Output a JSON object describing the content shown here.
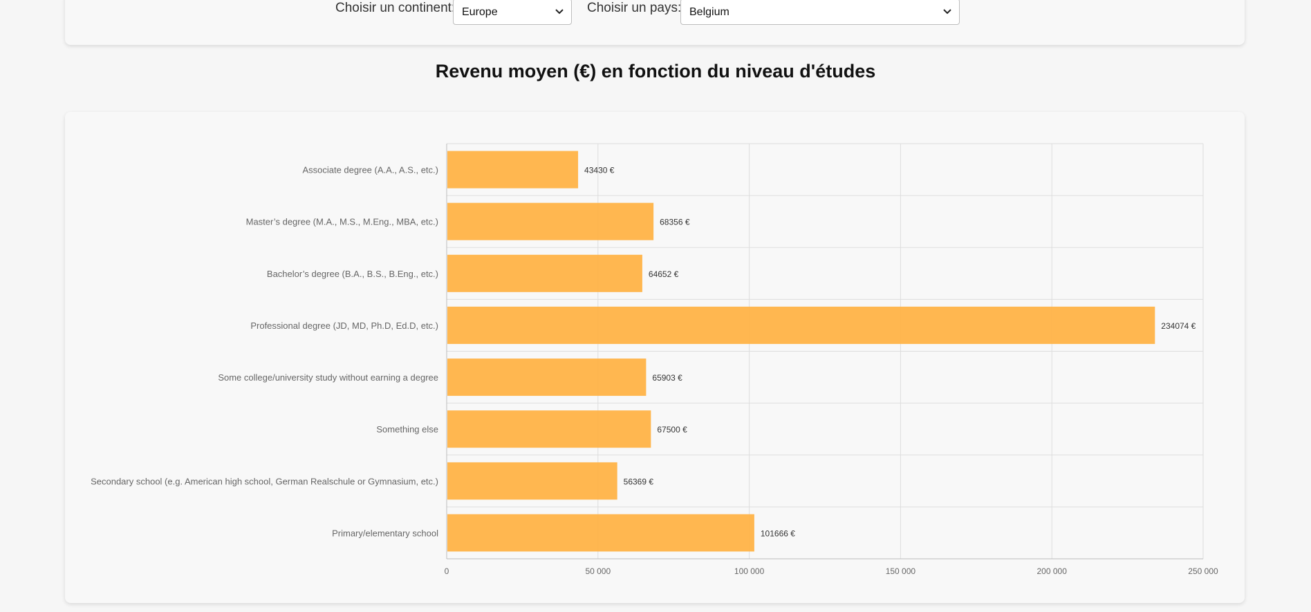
{
  "filters": {
    "continent_label": "Choisir un continent:",
    "continent_value": "Europe",
    "country_label": "Choisir un pays:",
    "country_value": "Belgium"
  },
  "colors": {
    "bar": "#ffb347",
    "grid": "#dddddd",
    "axis": "#bbbbbb"
  },
  "chart_data": {
    "type": "bar",
    "orientation": "horizontal",
    "title": "Revenu moyen (€) en fonction du niveau d'études",
    "categories": [
      "Associate degree (A.A., A.S., etc.)",
      "Master’s degree (M.A., M.S., M.Eng., MBA, etc.)",
      "Bachelor’s degree (B.A., B.S., B.Eng., etc.)",
      "Professional degree (JD, MD, Ph.D, Ed.D, etc.)",
      "Some college/university study without earning a degree",
      "Something else",
      "Secondary school (e.g. American high school, German Realschule or Gymnasium, etc.)",
      "Primary/elementary school"
    ],
    "values": [
      43430,
      68356,
      64652,
      234074,
      65903,
      67500,
      56369,
      101666
    ],
    "value_labels": [
      "43430 €",
      "68356 €",
      "64652 €",
      "234074 €",
      "65903 €",
      "67500 €",
      "56369 €",
      "101666 €"
    ],
    "xlim": [
      0,
      250000
    ],
    "xticks": [
      0,
      50000,
      100000,
      150000,
      200000,
      250000
    ],
    "xtick_labels": [
      "0",
      "50 000",
      "100 000",
      "150 000",
      "200 000",
      "250 000"
    ],
    "xlabel": "",
    "ylabel": "",
    "grid": true,
    "legend": "none"
  }
}
